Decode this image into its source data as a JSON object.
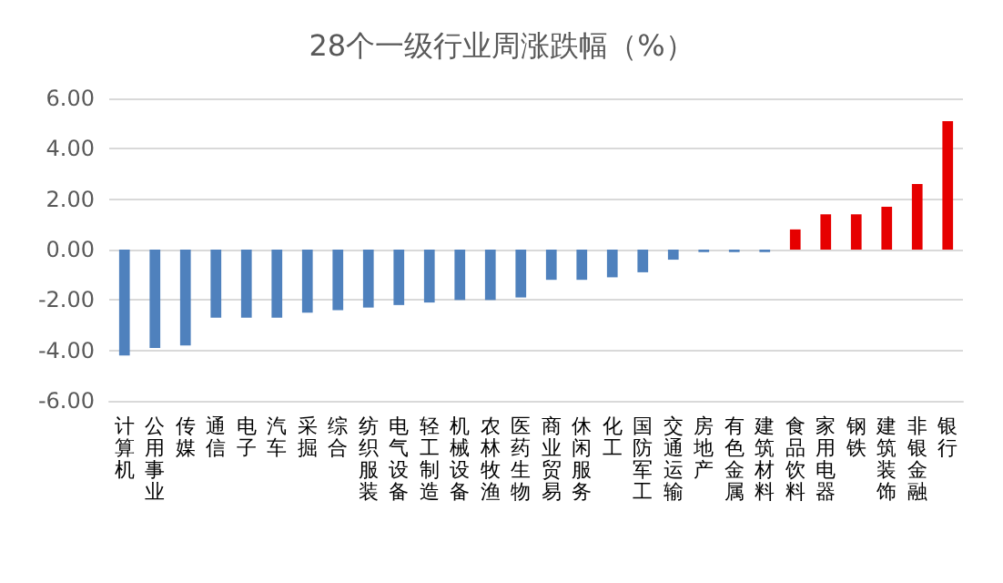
{
  "chart_data": {
    "type": "bar",
    "title": "28个一级行业周涨跌幅（%）",
    "categories": [
      "计算机",
      "公用事业",
      "传媒",
      "通信",
      "电子",
      "汽车",
      "采掘",
      "综合",
      "纺织服装",
      "电气设备",
      "轻工制造",
      "机械设备",
      "农林牧渔",
      "医药生物",
      "商业贸易",
      "休闲服务",
      "化工",
      "国防军工",
      "交通运输",
      "房地产",
      "有色金属",
      "建筑材料",
      "食品饮料",
      "家用电器",
      "钢铁",
      "建筑装饰",
      "非银金融",
      "银行"
    ],
    "values": [
      -4.2,
      -3.9,
      -3.8,
      -2.7,
      -2.7,
      -2.7,
      -2.5,
      -2.4,
      -2.3,
      -2.2,
      -2.1,
      -2.0,
      -2.0,
      -1.9,
      -1.2,
      -1.2,
      -1.1,
      -0.9,
      -0.4,
      -0.1,
      -0.1,
      -0.1,
      0.8,
      1.4,
      1.4,
      1.7,
      2.6,
      5.1
    ],
    "colors": [
      "#4f81bd",
      "#4f81bd",
      "#4f81bd",
      "#4f81bd",
      "#4f81bd",
      "#4f81bd",
      "#4f81bd",
      "#4f81bd",
      "#4f81bd",
      "#4f81bd",
      "#4f81bd",
      "#4f81bd",
      "#4f81bd",
      "#4f81bd",
      "#4f81bd",
      "#4f81bd",
      "#4f81bd",
      "#4f81bd",
      "#4f81bd",
      "#4f81bd",
      "#4f81bd",
      "#4f81bd",
      "#e60000",
      "#e60000",
      "#e60000",
      "#e60000",
      "#e60000",
      "#e60000"
    ],
    "ylim": [
      -6,
      6
    ],
    "yticks": [
      {
        "value": -6,
        "label": "-6.00"
      },
      {
        "value": -4,
        "label": "-4.00"
      },
      {
        "value": -2,
        "label": "-2.00"
      },
      {
        "value": 0,
        "label": "0.00"
      },
      {
        "value": 2,
        "label": "2.00"
      },
      {
        "value": 4,
        "label": "4.00"
      },
      {
        "value": 6,
        "label": "6.00"
      }
    ],
    "grid": "y"
  }
}
